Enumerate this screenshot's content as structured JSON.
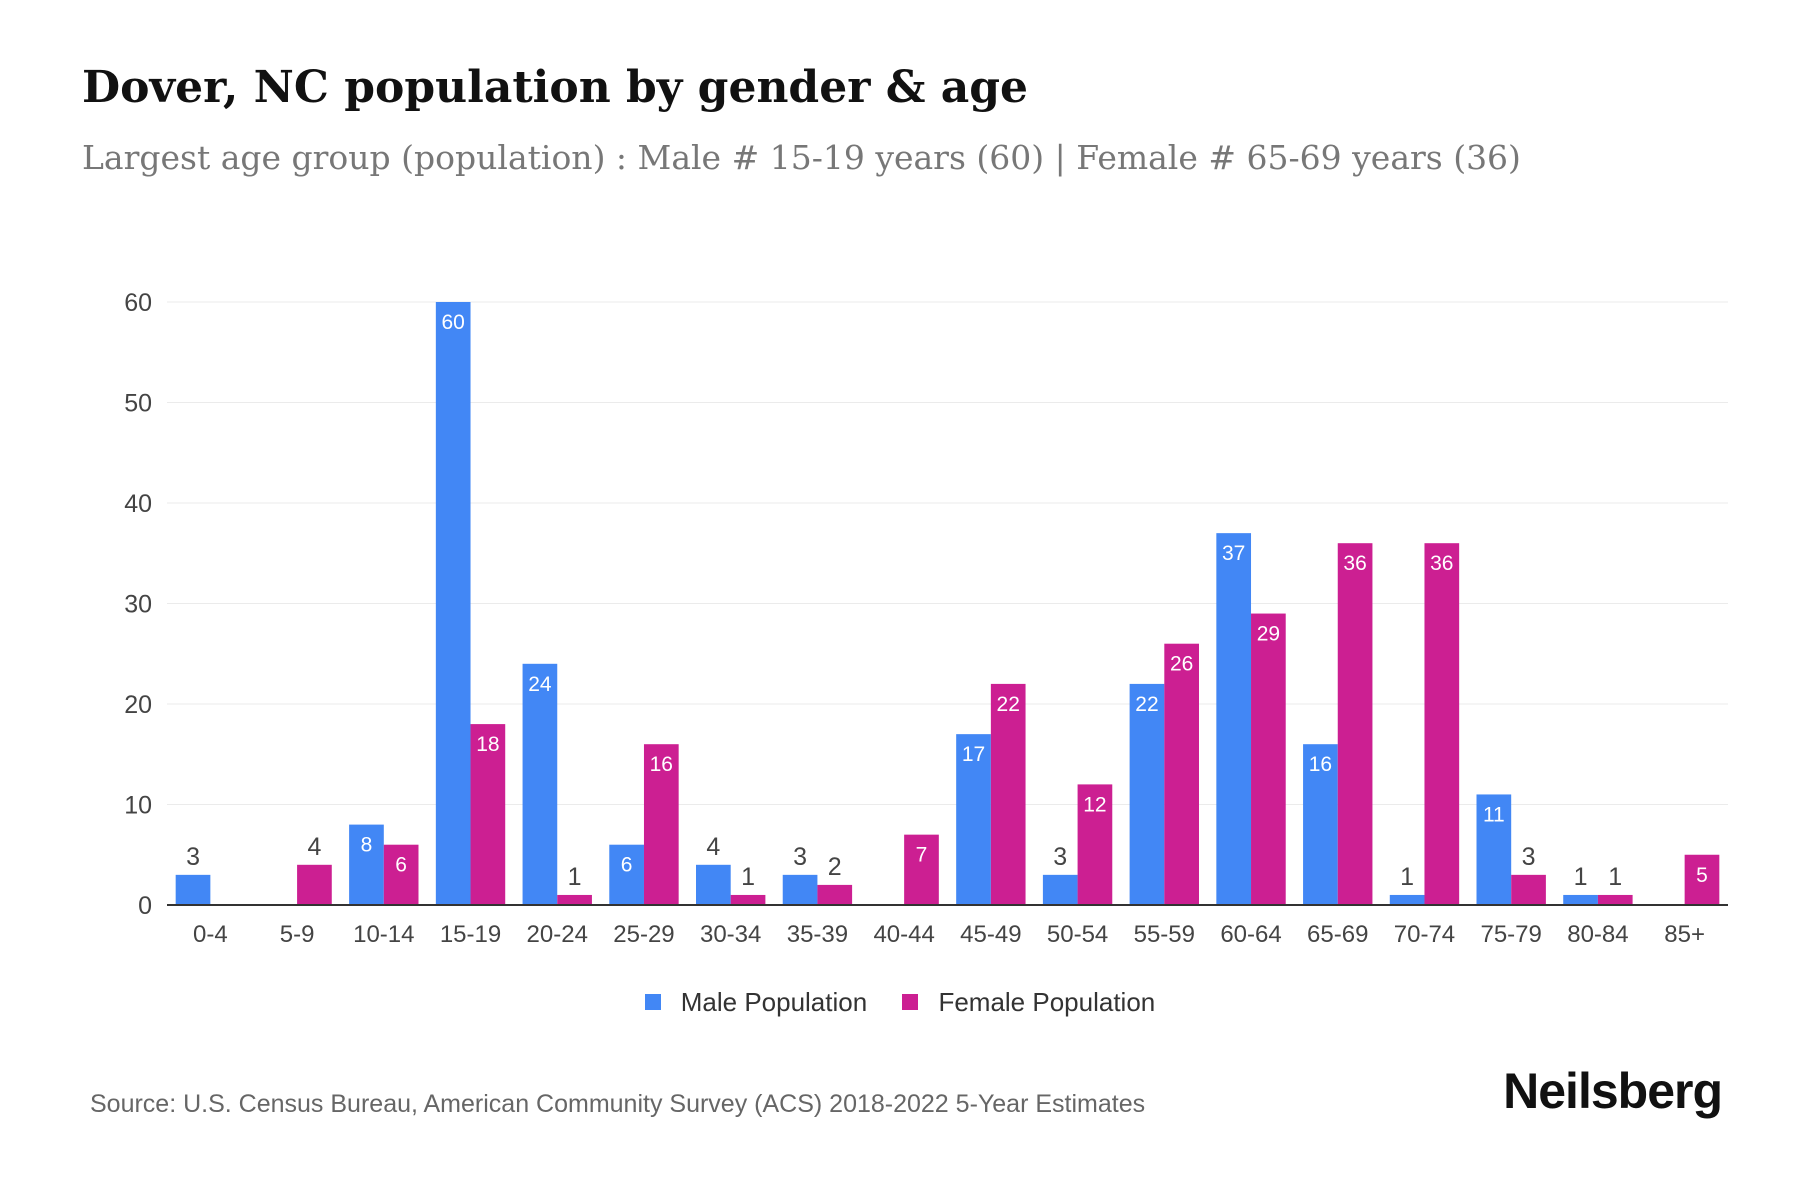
{
  "header": {
    "title": "Dover, NC population by gender & age",
    "subtitle": "Largest age group (population) : Male # 15-19 years (60) | Female # 65-69 years (36)"
  },
  "chart_data": {
    "type": "bar",
    "categories": [
      "0-4",
      "5-9",
      "10-14",
      "15-19",
      "20-24",
      "25-29",
      "30-34",
      "35-39",
      "40-44",
      "45-49",
      "50-54",
      "55-59",
      "60-64",
      "65-69",
      "70-74",
      "75-79",
      "80-84",
      "85+"
    ],
    "series": [
      {
        "name": "Male Population",
        "color": "#4287f5",
        "values": [
          3,
          0,
          8,
          60,
          24,
          6,
          4,
          3,
          0,
          17,
          3,
          22,
          37,
          16,
          1,
          11,
          1,
          0
        ]
      },
      {
        "name": "Female Population",
        "color": "#cc1f92",
        "values": [
          0,
          4,
          6,
          18,
          1,
          16,
          1,
          2,
          7,
          22,
          12,
          26,
          29,
          36,
          36,
          3,
          1,
          5
        ]
      }
    ],
    "yticks": [
      0,
      10,
      20,
      30,
      40,
      50,
      60
    ],
    "ylim": [
      0,
      60
    ],
    "grid": true,
    "legend": "bottom-center"
  },
  "footer": {
    "source": "Source: U.S. Census Bureau, American Community Survey (ACS) 2018-2022 5-Year Estimates",
    "logo": "Neilsberg"
  }
}
